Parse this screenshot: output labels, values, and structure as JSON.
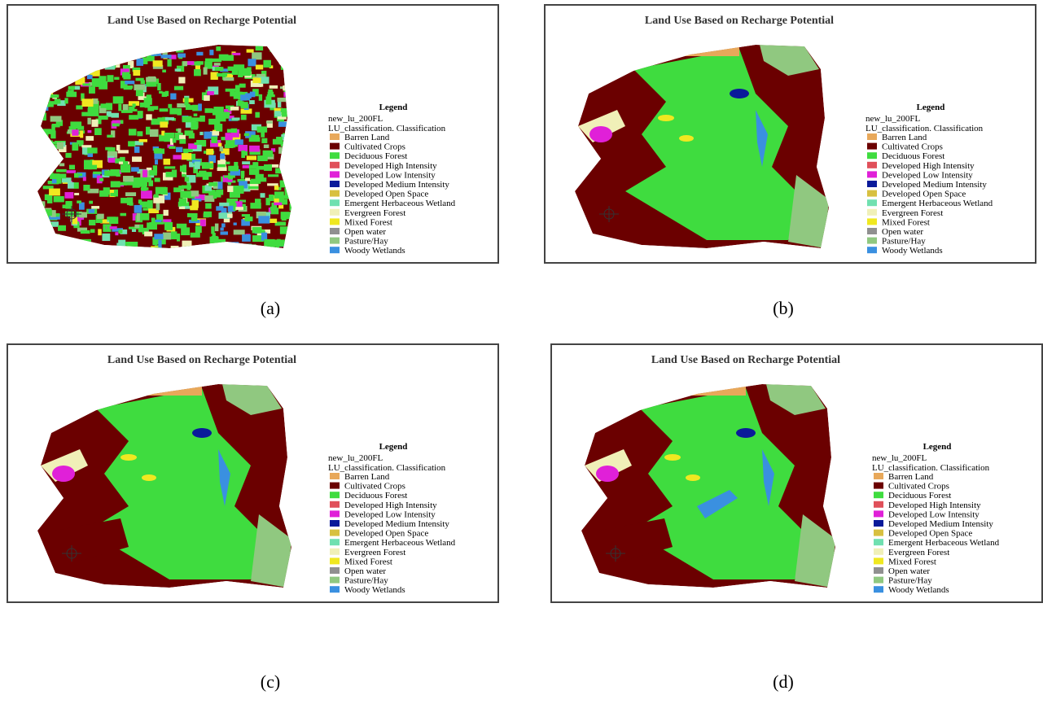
{
  "panels": [
    {
      "title": "Land Use Based on Recharge Potential",
      "caption": "(a)",
      "legend": {
        "title": "Legend",
        "layer": "new_lu_200FL",
        "field": "LU_classification. Classification",
        "items": [
          {
            "label": "Barren Land",
            "color": "#e8a85a"
          },
          {
            "label": "Cultivated Crops",
            "color": "#6b0000"
          },
          {
            "label": "Deciduous Forest",
            "color": "#3fdc3f"
          },
          {
            "label": "Developed High Intensity",
            "color": "#e0505a"
          },
          {
            "label": "Developed Low Intensity",
            "color": "#e020d8"
          },
          {
            "label": "Developed Medium Intensity",
            "color": "#0a1a9a"
          },
          {
            "label": "Developed Open Space",
            "color": "#d8c040"
          },
          {
            "label": "Emergent Herbaceous Wetland",
            "color": "#70e0b0"
          },
          {
            "label": "Evergreen Forest",
            "color": "#f0f0b8"
          },
          {
            "label": "Mixed Forest",
            "color": "#f0e820"
          },
          {
            "label": "Open water",
            "color": "#909090"
          },
          {
            "label": "Pasture/Hay",
            "color": "#90c880"
          },
          {
            "label": "Woody Wetlands",
            "color": "#3a90e0"
          }
        ]
      }
    },
    {
      "title": "Land Use Based on Recharge Potential",
      "caption": "(b)",
      "legend": {
        "title": "Legend",
        "layer": "new_lu_200FL",
        "field": "LU_classification. Classification",
        "items": [
          {
            "label": "Barren Land",
            "color": "#e8a85a"
          },
          {
            "label": "Cultivated Crops",
            "color": "#6b0000"
          },
          {
            "label": "Deciduous Forest",
            "color": "#3fdc3f"
          },
          {
            "label": "Developed High Intensity",
            "color": "#e0505a"
          },
          {
            "label": "Developed Low Intensity",
            "color": "#e020d8"
          },
          {
            "label": "Developed Medium Intensity",
            "color": "#0a1a9a"
          },
          {
            "label": "Developed Open Space",
            "color": "#d8c040"
          },
          {
            "label": "Emergent Herbaceous Wetland",
            "color": "#70e0b0"
          },
          {
            "label": "Evergreen Forest",
            "color": "#f0f0b8"
          },
          {
            "label": "Mixed Forest",
            "color": "#f0e820"
          },
          {
            "label": "Open water",
            "color": "#909090"
          },
          {
            "label": "Pasture/Hay",
            "color": "#90c880"
          },
          {
            "label": "Woody Wetlands",
            "color": "#3a90e0"
          }
        ]
      }
    },
    {
      "title": "Land Use Based on Recharge Potential",
      "caption": "(c)",
      "legend": {
        "title": "Legend",
        "layer": "new_lu_200FL",
        "field": "LU_classification. Classification",
        "items": [
          {
            "label": "Barren Land",
            "color": "#e8a85a"
          },
          {
            "label": "Cultivated Crops",
            "color": "#6b0000"
          },
          {
            "label": "Deciduous Forest",
            "color": "#3fdc3f"
          },
          {
            "label": "Developed High Intensity",
            "color": "#e0505a"
          },
          {
            "label": "Developed Low Intensity",
            "color": "#e020d8"
          },
          {
            "label": "Developed Medium Intensity",
            "color": "#0a1a9a"
          },
          {
            "label": "Developed Open Space",
            "color": "#d8c040"
          },
          {
            "label": "Emergent Herbaceous Wetland",
            "color": "#70e0b0"
          },
          {
            "label": "Evergreen Forest",
            "color": "#f0f0b8"
          },
          {
            "label": "Mixed Forest",
            "color": "#f0e820"
          },
          {
            "label": "Open water",
            "color": "#909090"
          },
          {
            "label": "Pasture/Hay",
            "color": "#90c880"
          },
          {
            "label": "Woody Wetlands",
            "color": "#3a90e0"
          }
        ]
      }
    },
    {
      "title": "Land Use Based on Recharge Potential",
      "caption": "(d)",
      "legend": {
        "title": "Legend",
        "layer": "new_lu_200FL",
        "field": "LU_classification. Classification",
        "items": [
          {
            "label": "Barren Land",
            "color": "#e8a85a"
          },
          {
            "label": "Cultivated Crops",
            "color": "#6b0000"
          },
          {
            "label": "Deciduous Forest",
            "color": "#3fdc3f"
          },
          {
            "label": "Developed High Intensity",
            "color": "#e0505a"
          },
          {
            "label": "Developed Low Intensity",
            "color": "#e020d8"
          },
          {
            "label": "Developed Medium Intensity",
            "color": "#0a1a9a"
          },
          {
            "label": "Developed Open Space",
            "color": "#d8c040"
          },
          {
            "label": "Emergent Herbaceous Wetland",
            "color": "#70e0b0"
          },
          {
            "label": "Evergreen Forest",
            "color": "#f0f0b8"
          },
          {
            "label": "Mixed Forest",
            "color": "#f0e820"
          },
          {
            "label": "Open water",
            "color": "#909090"
          },
          {
            "label": "Pasture/Hay",
            "color": "#90c880"
          },
          {
            "label": "Woody Wetlands",
            "color": "#3a90e0"
          }
        ]
      }
    }
  ]
}
